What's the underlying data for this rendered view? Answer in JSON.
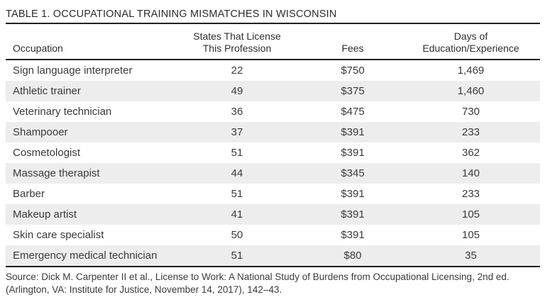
{
  "title": "TABLE 1. OCCUPATIONAL TRAINING MISMATCHES IN WISCONSIN",
  "table": {
    "header": {
      "occupation": "Occupation",
      "states_line1": "States That License",
      "states_line2": "This Profession",
      "fees": "Fees",
      "days_line1": "Days of",
      "days_line2": "Education/Experience"
    },
    "rows": [
      {
        "occupation": "Sign language interpreter",
        "states": "22",
        "fees": "$750",
        "days": "1,469"
      },
      {
        "occupation": "Athletic trainer",
        "states": "49",
        "fees": "$375",
        "days": "1,460"
      },
      {
        "occupation": "Veterinary technician",
        "states": "36",
        "fees": "$475",
        "days": "730"
      },
      {
        "occupation": "Shampooer",
        "states": "37",
        "fees": "$391",
        "days": "233"
      },
      {
        "occupation": "Cosmetologist",
        "states": "51",
        "fees": "$391",
        "days": "362"
      },
      {
        "occupation": "Massage therapist",
        "states": "44",
        "fees": "$345",
        "days": "140"
      },
      {
        "occupation": "Barber",
        "states": "51",
        "fees": "$391",
        "days": "233"
      },
      {
        "occupation": "Makeup artist",
        "states": "41",
        "fees": "$391",
        "days": "105"
      },
      {
        "occupation": "Skin care specialist",
        "states": "50",
        "fees": "$391",
        "days": "105"
      },
      {
        "occupation": "Emergency medical technician",
        "states": "51",
        "fees": "$80",
        "days": "35"
      }
    ]
  },
  "source": {
    "line1": "Source: Dick M. Carpenter II et al., License to Work: A National Study of Burdens from Occupational Licensing, 2nd ed.",
    "line2": "(Arlington, VA: Institute for Justice, November 14, 2017), 142–43."
  },
  "colors": {
    "row_alt": "#ededed",
    "rule": "#231f20",
    "text": "#3a3a3a"
  }
}
